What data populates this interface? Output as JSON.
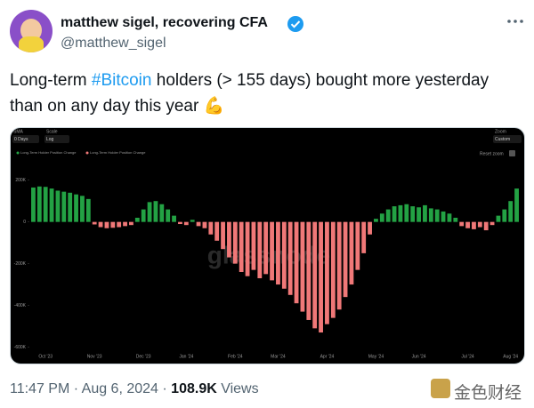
{
  "tweet": {
    "name": "matthew sigel, recovering CFA",
    "handle": "@matthew_sigel",
    "text_before": "Long-term ",
    "hashtag": "#Bitcoin",
    "text_after": " holders (> 155 days) bought more yesterday than on any day this year 💪",
    "time": "11:47 PM",
    "separator": "·",
    "date": "Aug 6, 2024",
    "views": "108.9K",
    "views_label": "Views",
    "source": "金色财经"
  },
  "chart_data": {
    "type": "bar",
    "controls": {
      "sma_label": "SMA",
      "sma_value": "0 Days",
      "scale_label": "Scale",
      "scale_value": "Log",
      "zoom_label": "Zoom",
      "zoom_value": "Custom",
      "reset": "Reset zoom"
    },
    "watermark": "glassnode",
    "legend": [
      {
        "name": "Long-Term Holder Position Change",
        "color": "#23a244"
      },
      {
        "name": "Long-Term Holder Position Change",
        "color": "#f07878"
      }
    ],
    "categories": [
      null,
      null,
      "Oct '23",
      null,
      null,
      null,
      null,
      null,
      null,
      null,
      "Nov '23",
      null,
      null,
      null,
      null,
      null,
      null,
      null,
      "Dec '23",
      null,
      null,
      null,
      null,
      null,
      null,
      "Jan '24",
      null,
      null,
      null,
      null,
      null,
      null,
      null,
      "Feb '24",
      null,
      null,
      null,
      null,
      null,
      null,
      "Mar '24",
      null,
      null,
      null,
      null,
      null,
      null,
      null,
      "Apr '24",
      null,
      null,
      null,
      null,
      null,
      null,
      null,
      "May '24",
      null,
      null,
      null,
      null,
      null,
      null,
      "Jun '24",
      null,
      null,
      null,
      null,
      null,
      null,
      null,
      "Jul '24",
      null,
      null,
      null,
      null,
      null,
      null,
      "Aug '24",
      null
    ],
    "values": [
      165000,
      170000,
      168000,
      160000,
      150000,
      145000,
      140000,
      132000,
      125000,
      110000,
      -12000,
      -25000,
      -30000,
      -28000,
      -25000,
      -20000,
      -15000,
      20000,
      60000,
      95000,
      100000,
      85000,
      60000,
      30000,
      -10000,
      -15000,
      10000,
      -20000,
      -30000,
      -60000,
      -90000,
      -130000,
      -170000,
      -200000,
      -240000,
      -260000,
      -230000,
      -270000,
      -250000,
      -280000,
      -300000,
      -320000,
      -350000,
      -390000,
      -430000,
      -470000,
      -510000,
      -530000,
      -490000,
      -460000,
      -420000,
      -360000,
      -300000,
      -230000,
      -150000,
      -60000,
      15000,
      40000,
      60000,
      75000,
      80000,
      85000,
      75000,
      70000,
      80000,
      65000,
      60000,
      50000,
      40000,
      20000,
      -20000,
      -30000,
      -35000,
      -25000,
      -40000,
      -15000,
      30000,
      60000,
      100000,
      160000
    ],
    "ylim": [
      -615000,
      250000
    ],
    "yticks": [
      {
        "value": 200000,
        "label": "200K"
      },
      0,
      {
        "value": -200000,
        "label": "-200K"
      },
      {
        "value": -400000,
        "label": "-400K"
      },
      {
        "value": -600000,
        "label": "-600K"
      }
    ],
    "grid": false
  }
}
